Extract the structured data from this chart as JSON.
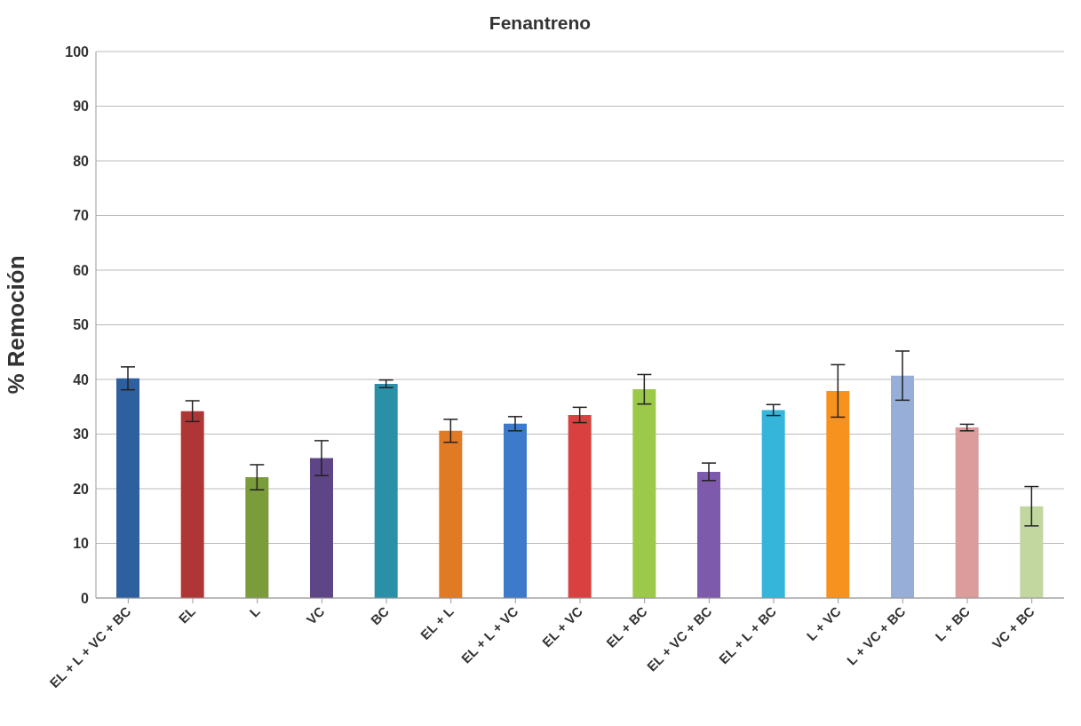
{
  "chart_data": {
    "type": "bar",
    "title": "Fenantreno",
    "ylabel": "% Remoción",
    "categories": [
      "EL + L + VC + BC",
      "EL",
      "L",
      "VC",
      "BC",
      "EL + L",
      "EL + L + VC",
      "EL + VC",
      "EL + BC",
      "EL + VC + BC",
      "EL + L + BC",
      "L + VC",
      "L + VC + BC",
      "L + BC",
      "VC + BC"
    ],
    "values": [
      40.2,
      34.2,
      22.1,
      25.6,
      39.2,
      30.6,
      31.9,
      33.5,
      38.2,
      23.1,
      34.4,
      37.9,
      40.7,
      31.2,
      16.8
    ],
    "errors": [
      2.1,
      1.9,
      2.3,
      3.2,
      0.7,
      2.1,
      1.3,
      1.4,
      2.7,
      1.6,
      1.0,
      4.8,
      4.5,
      0.6,
      3.6
    ],
    "colors": [
      "#2e5f9e",
      "#b03535",
      "#7a9c3a",
      "#5e4585",
      "#2a90a8",
      "#e07a25",
      "#3d7ac9",
      "#d94040",
      "#9cc94a",
      "#7e5aad",
      "#35b5d9",
      "#f8921f",
      "#97afd8",
      "#dd9c9c",
      "#c2d6a0"
    ],
    "ylim": [
      0,
      100
    ],
    "yticks": [
      0,
      10,
      20,
      30,
      40,
      50,
      60,
      70,
      80,
      90,
      100
    ],
    "grid": "y"
  }
}
